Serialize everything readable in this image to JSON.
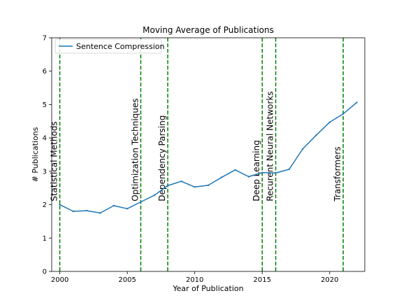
{
  "chart_data": {
    "type": "line",
    "title": "Moving Average of Publications",
    "xlabel": "Year of Publication",
    "ylabel": "# Publications",
    "xlim": [
      1999.4,
      2022.6
    ],
    "ylim": [
      0,
      7
    ],
    "xticks": [
      2000,
      2005,
      2010,
      2015,
      2020
    ],
    "yticks": [
      0,
      1,
      2,
      3,
      4,
      5,
      6,
      7
    ],
    "grid": false,
    "legend": {
      "placement": "top-left",
      "entries": [
        "Sentence Compression"
      ]
    },
    "series": [
      {
        "name": "Sentence Compression",
        "color": "#1f77b4",
        "x": [
          2000,
          2001,
          2002,
          2003,
          2004,
          2005,
          2006,
          2007,
          2008,
          2009,
          2010,
          2011,
          2012,
          2013,
          2014,
          2015,
          2016,
          2017,
          2018,
          2019,
          2020,
          2021,
          2022
        ],
        "y": [
          2.0,
          1.8,
          1.82,
          1.75,
          1.97,
          1.88,
          2.08,
          2.28,
          2.57,
          2.7,
          2.53,
          2.58,
          2.82,
          3.04,
          2.84,
          2.96,
          2.95,
          3.06,
          3.67,
          4.08,
          4.47,
          4.72,
          5.06
        ]
      }
    ],
    "annotations": {
      "color": "#008000",
      "markers": [
        {
          "x": 2000,
          "label": "Statistical Methods"
        },
        {
          "x": 2006,
          "label": "Optimization Techniques"
        },
        {
          "x": 2008,
          "label": "Dependency Parsing"
        },
        {
          "x": 2015,
          "label": "Deep Learning"
        },
        {
          "x": 2016,
          "label": "Recurent Neural Networks"
        },
        {
          "x": 2021,
          "label": "Transformers"
        }
      ]
    }
  }
}
